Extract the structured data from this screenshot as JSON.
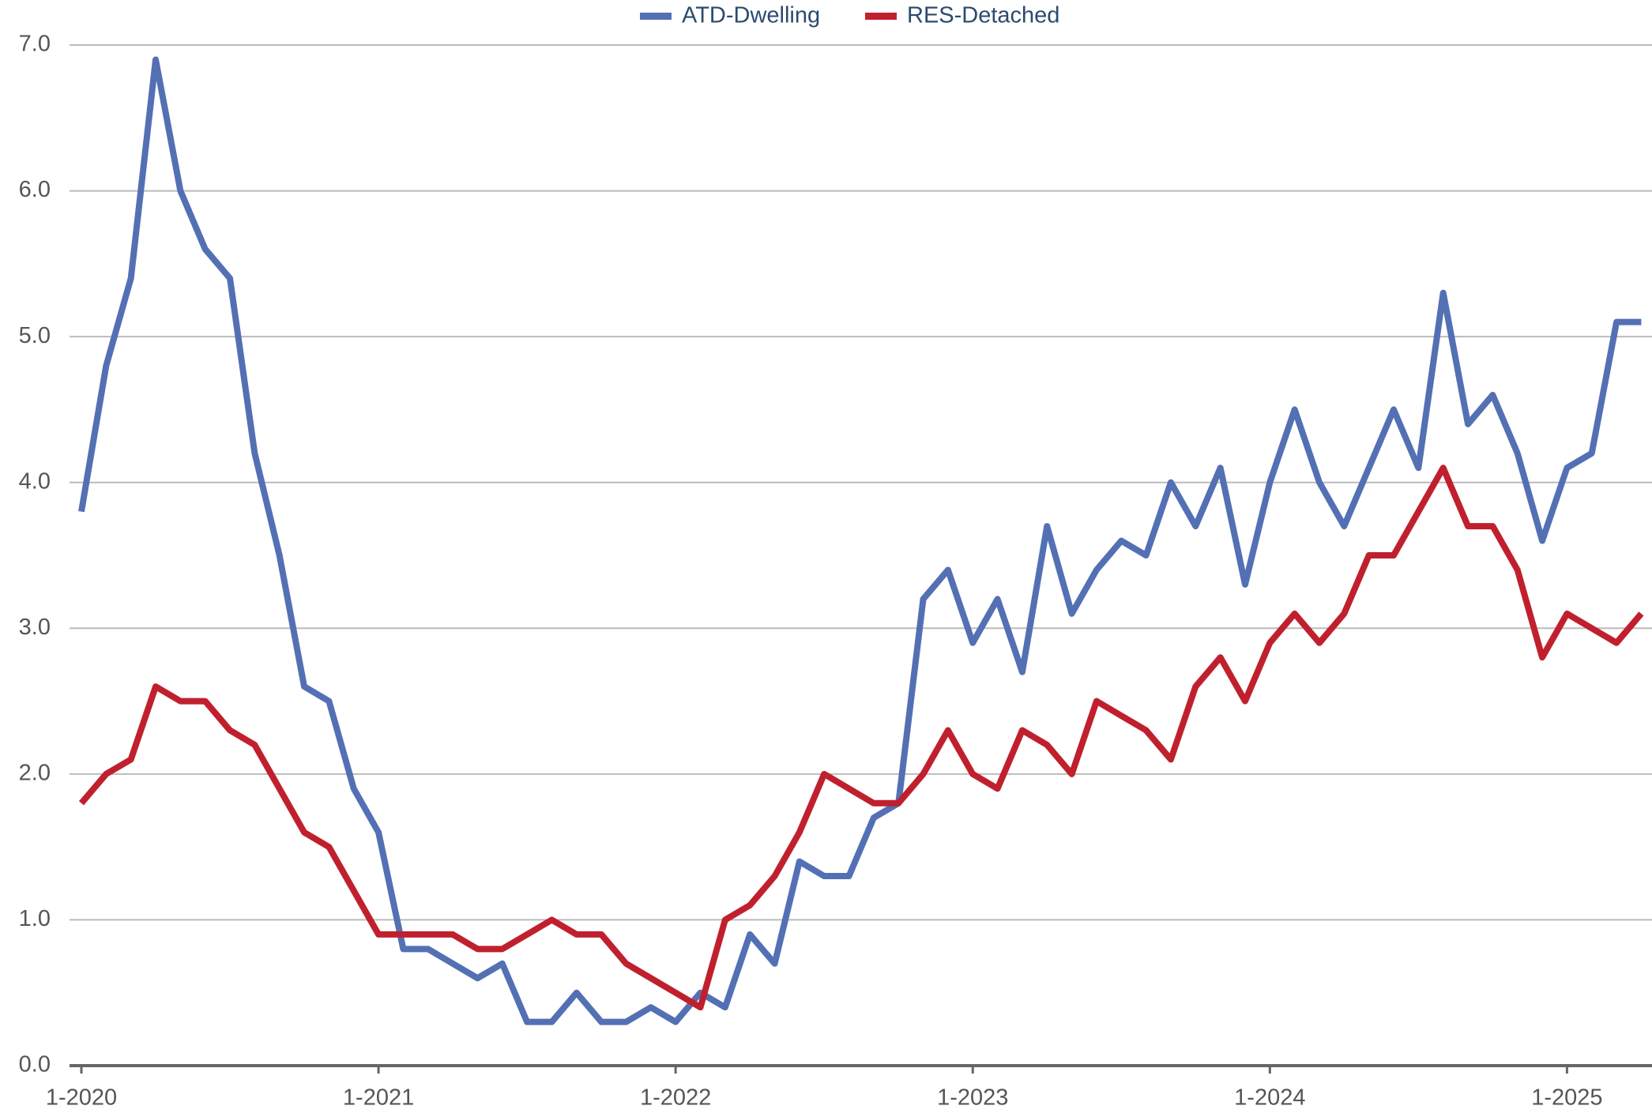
{
  "chart_data": {
    "type": "line",
    "categories": [
      "1-2020",
      null,
      null,
      null,
      null,
      null,
      null,
      null,
      null,
      null,
      null,
      null,
      "1-2021",
      null,
      null,
      null,
      null,
      null,
      null,
      null,
      null,
      null,
      null,
      null,
      "1-2022",
      null,
      null,
      null,
      null,
      null,
      null,
      null,
      null,
      null,
      null,
      null,
      "1-2023",
      null,
      null,
      null,
      null,
      null,
      null,
      null,
      null,
      null,
      null,
      null,
      "1-2024",
      null,
      null,
      null,
      null,
      null,
      null,
      null,
      null,
      null,
      null,
      null,
      "1-2025",
      null,
      null,
      null
    ],
    "series": [
      {
        "name": "ATD-Dwelling",
        "color": "#5470b4",
        "values": [
          3.8,
          4.8,
          5.4,
          6.9,
          6.0,
          5.6,
          5.4,
          4.2,
          3.5,
          2.6,
          2.5,
          1.9,
          1.6,
          0.8,
          0.8,
          0.7,
          0.6,
          0.7,
          0.3,
          0.3,
          0.5,
          0.3,
          0.3,
          0.4,
          0.3,
          0.5,
          0.4,
          0.9,
          0.7,
          1.4,
          1.3,
          1.3,
          1.7,
          1.8,
          3.2,
          3.4,
          2.9,
          3.2,
          2.7,
          3.7,
          3.1,
          3.4,
          3.6,
          3.5,
          4.0,
          3.7,
          4.1,
          3.3,
          4.0,
          4.5,
          4.0,
          3.7,
          4.1,
          4.5,
          4.1,
          5.3,
          4.4,
          4.6,
          4.2,
          3.6,
          4.1,
          4.2,
          5.1,
          5.1
        ]
      },
      {
        "name": "RES-Detached",
        "color": "#c0202e",
        "values": [
          1.8,
          2.0,
          2.1,
          2.6,
          2.5,
          2.5,
          2.3,
          2.2,
          1.9,
          1.6,
          1.5,
          1.2,
          0.9,
          0.9,
          0.9,
          0.9,
          0.8,
          0.8,
          0.9,
          1.0,
          0.9,
          0.9,
          0.7,
          0.6,
          0.5,
          0.4,
          1.0,
          1.1,
          1.3,
          1.6,
          2.0,
          1.9,
          1.8,
          1.8,
          2.0,
          2.3,
          2.0,
          1.9,
          2.3,
          2.2,
          2.0,
          2.5,
          2.4,
          2.3,
          2.1,
          2.6,
          2.8,
          2.5,
          2.9,
          3.1,
          2.9,
          3.1,
          3.5,
          3.5,
          3.8,
          4.1,
          3.7,
          3.7,
          3.4,
          2.8,
          3.1,
          3.0,
          2.9,
          3.1
        ]
      }
    ],
    "ylim": [
      0,
      7
    ],
    "yticks": [
      {
        "value": 0,
        "label": "0.0"
      },
      {
        "value": 1,
        "label": "1.0"
      },
      {
        "value": 2,
        "label": "2.0"
      },
      {
        "value": 3,
        "label": "3.0"
      },
      {
        "value": 4,
        "label": "4.0"
      },
      {
        "value": 5,
        "label": "5.0"
      },
      {
        "value": 6,
        "label": "6.0"
      },
      {
        "value": 7,
        "label": "7.0"
      }
    ],
    "grid": true,
    "legend": "top"
  }
}
